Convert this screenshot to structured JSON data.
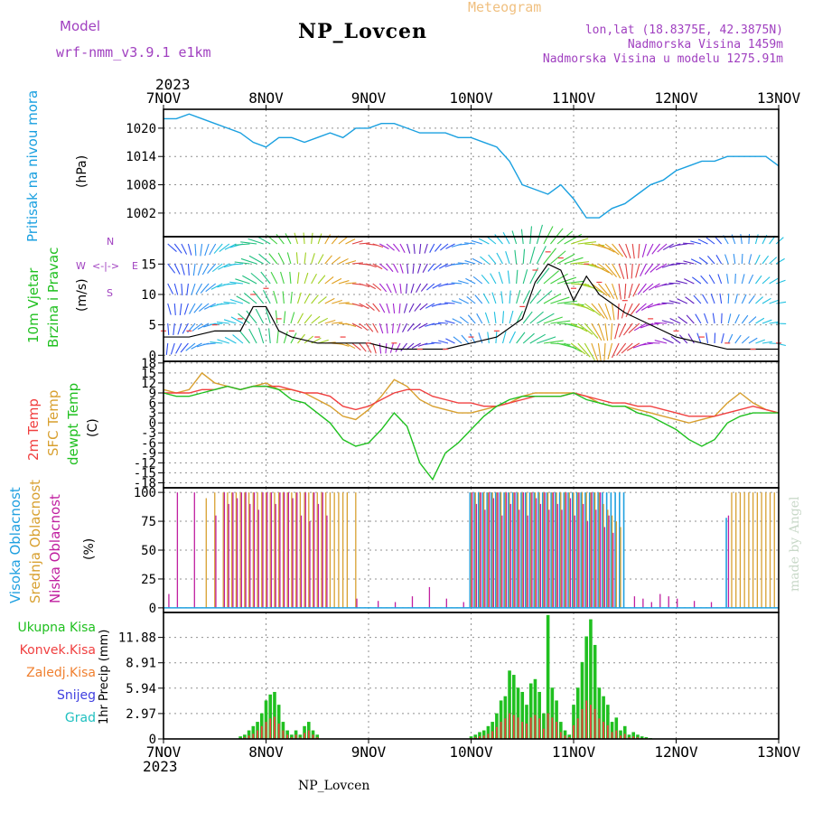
{
  "header": {
    "model_label": "Model",
    "model_value": "wrf-nmm_v3.9.1 e1km",
    "station_title": "NP_Lovcen",
    "meteogram_label": "Meteogram",
    "coords": "lon,lat (18.8375E, 42.3875N)",
    "altitude": "Nadmorska Visina 1459m",
    "model_altitude": "Nadmorska Visina u modelu 1275.91m",
    "year": "2023"
  },
  "footer": {
    "station_label": "NP_Lovcen",
    "year": "2023",
    "credit": "made by Angel"
  },
  "x_ticks": [
    "7NOV",
    "8NOV",
    "9NOV",
    "10NOV",
    "11NOV",
    "12NOV",
    "13NOV"
  ],
  "colors": {
    "pressure": "#1aa0e0",
    "temp2m": "#f04040",
    "sfc_temp": "#d8a030",
    "dewpt": "#20c020",
    "high_cloud": "#20a0e0",
    "mid_cloud": "#d8a030",
    "low_cloud": "#c020a0",
    "total_precip": "#20c020",
    "conv_precip": "#f04040",
    "frozen_precip": "#f08030",
    "snow": "#4040e0",
    "hail": "#20c0c0"
  },
  "panels": {
    "pressure": {
      "ylabel_main": "Pritisak na nivou mora",
      "ylabel_unit": "(hPa)"
    },
    "wind": {
      "ylabel_main": "10m Vjetar",
      "ylabel_sub": "Brzina i Pravac",
      "ylabel_unit": "(m/s)",
      "compass_w": "W",
      "compass_e": "E",
      "compass_s": "S",
      "compass_n": "N"
    },
    "temp": {
      "label_t2": "2m Temp",
      "label_sfc": "SFC Temp",
      "label_dew": "dewpt Temp",
      "ylabel_unit": "(C)"
    },
    "cloud": {
      "label_high": "Visoka Oblacnost",
      "label_mid": "Srednja Oblacnost",
      "label_low": "Niska Oblacnost",
      "ylabel_unit": "(%)"
    },
    "precip": {
      "label_total": "Ukupna Kisa",
      "label_conv": "Konvek.Kisa",
      "label_frozen": "Zaledj.Kisa",
      "label_snow": "Snijeg",
      "label_hail": "Grad",
      "ylabel_unit": "1hr Precip (mm)"
    }
  },
  "chart_data": [
    {
      "type": "line",
      "title": "Pritisak na nivou mora",
      "ylabel": "(hPa)",
      "ylim": [
        997,
        1024
      ],
      "yticks": [
        1002,
        1008,
        1014,
        1020
      ],
      "x_hours": [
        0,
        3,
        6,
        9,
        12,
        15,
        18,
        21,
        24,
        27,
        30,
        33,
        36,
        39,
        42,
        45,
        48,
        51,
        54,
        57,
        60,
        63,
        66,
        69,
        72,
        75,
        78,
        81,
        84,
        87,
        90,
        93,
        96,
        99,
        102,
        105,
        108,
        111,
        114,
        117,
        120,
        123,
        126,
        129,
        132,
        135,
        138,
        141,
        144
      ],
      "series": [
        {
          "name": "Pritisak na nivou mora",
          "values": [
            1022,
            1022,
            1023,
            1022,
            1021,
            1020,
            1019,
            1017,
            1016,
            1018,
            1018,
            1017,
            1018,
            1019,
            1018,
            1020,
            1020,
            1021,
            1021,
            1020,
            1019,
            1019,
            1019,
            1018,
            1018,
            1017,
            1016,
            1013,
            1008,
            1007,
            1006,
            1008,
            1005,
            1001,
            1001,
            1003,
            1004,
            1006,
            1008,
            1009,
            1011,
            1012,
            1013,
            1013,
            1014,
            1014,
            1014,
            1014,
            1012
          ]
        }
      ]
    },
    {
      "type": "line",
      "title": "10m Vjetar Brzina i Pravac",
      "ylabel": "(m/s)",
      "ylim": [
        -1,
        19.5
      ],
      "yticks": [
        0,
        5,
        10,
        15
      ],
      "x_hours": [
        0,
        6,
        12,
        18,
        21,
        24,
        27,
        30,
        36,
        42,
        48,
        54,
        60,
        66,
        72,
        78,
        84,
        87,
        90,
        93,
        96,
        99,
        102,
        108,
        114,
        120,
        126,
        132,
        138,
        144
      ],
      "series": [
        {
          "name": "10m Vjetar Brzina",
          "values": [
            3,
            3,
            4,
            4,
            8,
            8,
            4,
            3,
            2,
            2,
            2,
            1,
            1,
            1,
            2,
            3,
            6,
            12,
            15,
            14,
            9,
            13,
            10,
            7,
            5,
            3,
            2,
            1,
            1,
            1
          ]
        },
        {
          "name": "10m Vjetar Brzina",
          "values": [
            4,
            4,
            5,
            6,
            10,
            11,
            6,
            4,
            3,
            3,
            2,
            2,
            1,
            1,
            3,
            4,
            8,
            14,
            17,
            16,
            11,
            15,
            12,
            9,
            6,
            4,
            3,
            2,
            1,
            2
          ]
        }
      ],
      "barb_colors": [
        "#3050f0",
        "#3090f0",
        "#20c0e0",
        "#20c080",
        "#40d040",
        "#a0d020",
        "#e0a020",
        "#e04040",
        "#a020d0",
        "#6020c0"
      ]
    },
    {
      "type": "line",
      "title": "2m Temp / SFC Temp / dewpt Temp",
      "ylabel": "(C)",
      "ylim": [
        -19.5,
        18.5
      ],
      "yticks": [
        -18,
        -15,
        -12,
        -9,
        -6,
        -3,
        0,
        3,
        6,
        9,
        12,
        15,
        18
      ],
      "x_hours": [
        0,
        3,
        6,
        9,
        12,
        15,
        18,
        21,
        24,
        27,
        30,
        33,
        36,
        39,
        42,
        45,
        48,
        51,
        54,
        57,
        60,
        63,
        66,
        69,
        72,
        75,
        78,
        81,
        84,
        87,
        90,
        93,
        96,
        99,
        102,
        105,
        108,
        111,
        114,
        117,
        120,
        123,
        126,
        129,
        132,
        135,
        138,
        141,
        144
      ],
      "series": [
        {
          "name": "2m Temp",
          "values": [
            9,
            9,
            9,
            10,
            10,
            11,
            10,
            11,
            11,
            11,
            10,
            9,
            9,
            8,
            5,
            4,
            5,
            7,
            9,
            10,
            10,
            8,
            7,
            6,
            6,
            5,
            5,
            6,
            7,
            8,
            8,
            8,
            9,
            8,
            7,
            6,
            6,
            5,
            5,
            4,
            3,
            2,
            2,
            2,
            3,
            4,
            5,
            4,
            3
          ]
        },
        {
          "name": "SFC Temp",
          "values": [
            10,
            9,
            10,
            15,
            12,
            11,
            10,
            11,
            12,
            10,
            10,
            9,
            7,
            5,
            2,
            1,
            4,
            8,
            13,
            11,
            7,
            5,
            4,
            3,
            3,
            4,
            5,
            6,
            8,
            9,
            9,
            9,
            9,
            8,
            6,
            5,
            5,
            4,
            3,
            2,
            1,
            0,
            1,
            2,
            6,
            9,
            6,
            4,
            3
          ]
        },
        {
          "name": "dewpt Temp",
          "values": [
            9,
            8,
            8,
            9,
            10,
            11,
            10,
            11,
            11,
            10,
            7,
            6,
            3,
            0,
            -5,
            -7,
            -6,
            -2,
            3,
            -1,
            -12,
            -17,
            -9,
            -6,
            -2,
            2,
            5,
            7,
            8,
            8,
            8,
            8,
            9,
            7,
            6,
            5,
            5,
            3,
            2,
            0,
            -2,
            -5,
            -7,
            -5,
            0,
            2,
            3,
            3,
            3
          ]
        }
      ]
    },
    {
      "type": "bar",
      "title": "Visoka / Srednja / Niska Oblacnost",
      "ylabel": "(%)",
      "ylim": [
        -4,
        104
      ],
      "yticks": [
        0,
        25,
        50,
        75,
        100
      ],
      "x_hours": [
        1,
        3,
        7,
        8,
        10,
        12,
        14,
        15,
        16,
        17,
        18,
        19,
        20,
        21,
        22,
        23,
        24,
        25,
        26,
        27,
        28,
        29,
        30,
        31,
        32,
        33,
        34,
        35,
        36,
        37,
        38,
        39,
        40,
        41,
        42,
        43,
        45,
        50,
        54,
        58,
        62,
        66,
        70,
        72,
        73,
        74,
        75,
        76,
        77,
        78,
        79,
        80,
        81,
        82,
        83,
        84,
        85,
        86,
        87,
        88,
        89,
        90,
        91,
        92,
        93,
        94,
        95,
        96,
        97,
        98,
        99,
        100,
        101,
        102,
        103,
        104,
        105,
        106,
        107,
        108,
        109,
        110,
        112,
        114,
        116,
        118,
        120,
        124,
        128,
        132,
        133,
        134,
        135,
        136,
        137,
        138,
        139,
        140,
        141,
        142,
        143
      ],
      "series": [
        {
          "name": "Visoka Oblacnost",
          "values": [
            0,
            0,
            0,
            0,
            0,
            0,
            0,
            0,
            0,
            0,
            0,
            0,
            0,
            0,
            0,
            0,
            0,
            0,
            0,
            0,
            0,
            0,
            0,
            0,
            0,
            0,
            0,
            0,
            0,
            0,
            0,
            0,
            0,
            0,
            0,
            0,
            0,
            0,
            0,
            0,
            0,
            0,
            0,
            100,
            100,
            100,
            100,
            100,
            100,
            100,
            100,
            100,
            100,
            100,
            100,
            100,
            100,
            100,
            100,
            100,
            100,
            100,
            100,
            100,
            100,
            100,
            100,
            100,
            100,
            100,
            100,
            100,
            100,
            100,
            100,
            100,
            100,
            100,
            100,
            100,
            0,
            0,
            0,
            0,
            0,
            0,
            0,
            0,
            0,
            78,
            0,
            0,
            0,
            0,
            0,
            0,
            0,
            0,
            0,
            0,
            0
          ]
        },
        {
          "name": "Srednja Oblacnost",
          "values": [
            0,
            0,
            0,
            0,
            95,
            100,
            100,
            100,
            100,
            100,
            100,
            100,
            100,
            100,
            100,
            100,
            100,
            100,
            100,
            100,
            100,
            100,
            100,
            100,
            100,
            100,
            100,
            100,
            100,
            100,
            100,
            100,
            100,
            100,
            100,
            100,
            100,
            0,
            0,
            0,
            0,
            0,
            0,
            100,
            100,
            100,
            100,
            100,
            100,
            100,
            100,
            100,
            100,
            100,
            100,
            100,
            100,
            100,
            100,
            100,
            100,
            100,
            100,
            100,
            100,
            100,
            100,
            100,
            100,
            100,
            100,
            100,
            100,
            100,
            90,
            85,
            80,
            75,
            70,
            0,
            0,
            0,
            0,
            0,
            0,
            0,
            0,
            0,
            0,
            0,
            100,
            100,
            100,
            100,
            100,
            100,
            100,
            100,
            100,
            100,
            100
          ]
        },
        {
          "name": "Niska Oblacnost",
          "values": [
            12,
            100,
            100,
            0,
            0,
            80,
            100,
            90,
            100,
            95,
            100,
            100,
            90,
            100,
            85,
            100,
            100,
            100,
            90,
            100,
            100,
            100,
            95,
            100,
            80,
            100,
            75,
            100,
            90,
            100,
            80,
            0,
            0,
            0,
            0,
            0,
            8,
            6,
            5,
            10,
            18,
            8,
            5,
            100,
            90,
            100,
            85,
            100,
            95,
            100,
            80,
            100,
            90,
            100,
            85,
            100,
            80,
            100,
            95,
            90,
            100,
            85,
            100,
            90,
            85,
            100,
            95,
            80,
            100,
            90,
            75,
            100,
            85,
            100,
            70,
            80,
            65,
            0,
            0,
            0,
            0,
            10,
            8,
            5,
            12,
            10,
            8,
            6,
            5,
            80,
            0,
            0,
            0,
            0,
            0,
            0,
            0,
            0,
            0,
            0,
            0
          ]
        }
      ]
    },
    {
      "type": "bar",
      "title": "1hr Precip",
      "ylabel": "1hr Precip (mm)",
      "ylim": [
        0,
        14.8
      ],
      "yticks": [
        0,
        2.97,
        5.94,
        8.91,
        11.88
      ],
      "x_hours": [
        18,
        19,
        20,
        21,
        22,
        23,
        24,
        25,
        26,
        27,
        28,
        29,
        30,
        31,
        32,
        33,
        34,
        35,
        36,
        72,
        73,
        74,
        75,
        76,
        77,
        78,
        79,
        80,
        81,
        82,
        83,
        84,
        85,
        86,
        87,
        88,
        89,
        90,
        91,
        92,
        93,
        94,
        95,
        96,
        97,
        98,
        99,
        100,
        101,
        102,
        103,
        104,
        105,
        106,
        107,
        108,
        109,
        110,
        111,
        112,
        113,
        114
      ],
      "series": [
        {
          "name": "Ukupna Kisa",
          "values": [
            0.3,
            0.5,
            1.0,
            1.5,
            2.0,
            3.0,
            4.5,
            5.2,
            5.5,
            4.0,
            2.0,
            1.0,
            0.5,
            1.0,
            0.5,
            1.5,
            2.0,
            1.0,
            0.5,
            0.3,
            0.5,
            0.8,
            1.0,
            1.5,
            2.0,
            3.0,
            4.5,
            5.0,
            8.0,
            7.5,
            6.0,
            5.5,
            4.0,
            6.5,
            7.0,
            5.5,
            3.0,
            14.5,
            6.0,
            4.5,
            2.0,
            1.0,
            0.5,
            4.0,
            6.0,
            9.0,
            12.0,
            14.0,
            11.0,
            6.0,
            5.0,
            4.0,
            2.0,
            2.5,
            1.0,
            1.5,
            0.5,
            0.8,
            0.5,
            0.3,
            0.2,
            0.1
          ]
        },
        {
          "name": "Konvek.Kisa",
          "values": [
            0.1,
            0.2,
            0.4,
            0.6,
            1.0,
            1.5,
            2.0,
            2.4,
            2.6,
            1.8,
            1.0,
            0.5,
            0.2,
            0.5,
            0.2,
            0.7,
            1.0,
            0.5,
            0.2,
            0.1,
            0.2,
            0.3,
            0.4,
            0.6,
            0.9,
            1.4,
            2.0,
            2.4,
            3.0,
            2.8,
            2.5,
            2.0,
            1.8,
            2.5,
            2.8,
            2.4,
            1.2,
            3.0,
            2.5,
            2.0,
            0.8,
            0.4,
            0.2,
            1.6,
            2.4,
            3.5,
            4.5,
            4.0,
            3.5,
            2.4,
            2.0,
            1.6,
            0.8,
            1.0,
            0.4,
            0.6,
            0.2,
            0.3,
            0.2,
            0.1,
            0.1,
            0
          ]
        }
      ],
      "series_unshown": [
        {
          "name": "Zaledj.Kisa"
        },
        {
          "name": "Snijeg"
        },
        {
          "name": "Grad"
        }
      ]
    }
  ]
}
